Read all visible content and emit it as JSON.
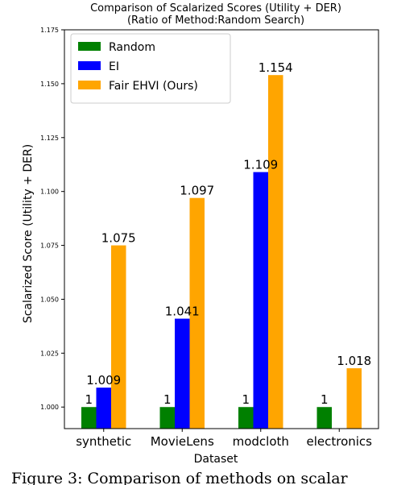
{
  "chart_data": {
    "type": "bar",
    "title": "Comparison of Scalarized Scores (Utility + DER)",
    "subtitle": "(Ratio of Method:Random Search)",
    "xlabel": "Dataset",
    "ylabel": "Scalarized Score (Utility + DER)",
    "categories": [
      "synthetic",
      "MovieLens",
      "modcloth",
      "electronics"
    ],
    "ylim": [
      0.99,
      1.175
    ],
    "yticks": [
      "1.000",
      "1.025",
      "1.050",
      "1.075",
      "1.100",
      "1.125",
      "1.150",
      "1.175"
    ],
    "legend_position": "upper-left",
    "series": [
      {
        "name": "Random",
        "color": "#008000",
        "values": [
          1.0,
          1.0,
          1.0,
          1.0
        ],
        "labels": [
          "1",
          "1",
          "1",
          "1"
        ]
      },
      {
        "name": "EI",
        "color": "#0000ff",
        "values": [
          1.009,
          1.041,
          1.109,
          null
        ],
        "labels": [
          "1.009",
          "1.041",
          "1.109",
          null
        ]
      },
      {
        "name": "Fair EHVI (Ours)",
        "color": "#ffa500",
        "values": [
          1.075,
          1.097,
          1.154,
          1.018
        ],
        "labels": [
          "1.075",
          "1.097",
          "1.154",
          "1.018"
        ]
      }
    ]
  },
  "caption": "Figure 3: Comparison of methods on scalar"
}
